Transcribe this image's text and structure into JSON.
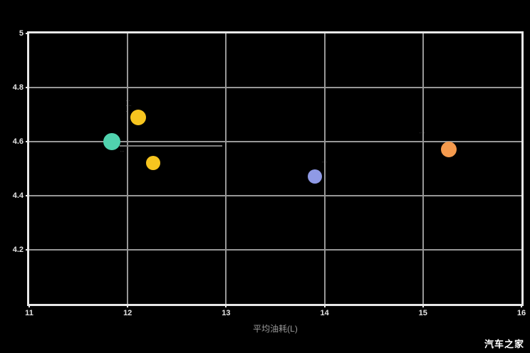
{
  "page": {
    "watermark": "汽车之家"
  },
  "chart_data": {
    "type": "scatter",
    "title": "",
    "xlabel": "平均油耗(L)",
    "ylabel": "",
    "xlim": [
      11,
      16
    ],
    "ylim": [
      4,
      5
    ],
    "grid": true,
    "legend": "none",
    "x_ticks": [
      "11",
      "12",
      "13",
      "14",
      "15",
      "16"
    ],
    "y_ticks": [
      {
        "value": 5,
        "label": "5"
      },
      {
        "value": 4.8,
        "label": "4.8"
      },
      {
        "value": 4.6,
        "label": "4.6"
      },
      {
        "value": 4.4,
        "label": "4.4"
      },
      {
        "value": 4.2,
        "label": "4.2"
      }
    ],
    "points": [
      {
        "x": 11.84,
        "y": 4.6,
        "r": 12,
        "color": "#50d2ae"
      },
      {
        "x": 12.11,
        "y": 4.69,
        "r": 11,
        "color": "#f7c51f"
      },
      {
        "x": 12.26,
        "y": 4.52,
        "r": 10,
        "color": "#f7c51f"
      },
      {
        "x": 13.9,
        "y": 4.47,
        "r": 10,
        "color": "#8f9ae6"
      },
      {
        "x": 15.26,
        "y": 4.57,
        "r": 11,
        "color": "#f59a4d"
      }
    ],
    "annotations": [
      {
        "x": 12.01,
        "y": 4.73,
        "lines": [
          "···",
          "····",
          "··"
        ]
      },
      {
        "x": 11.95,
        "y": 4.57,
        "lines": [
          "····",
          "···"
        ]
      },
      {
        "x": 14.0,
        "y": 4.52,
        "lines": [
          "····"
        ]
      },
      {
        "x": 14.99,
        "y": 4.63,
        "lines": [
          "····"
        ]
      }
    ],
    "leader_line": {
      "x1": 11.92,
      "x2": 12.96,
      "y": 4.588
    }
  },
  "colors": {
    "background": "#000000",
    "plot_border": "#e8e8e8",
    "gridline": "#979797",
    "tick_label": "#e4e4e4",
    "axis_title": "#9a9a9a",
    "watermark": "#ffffff"
  }
}
